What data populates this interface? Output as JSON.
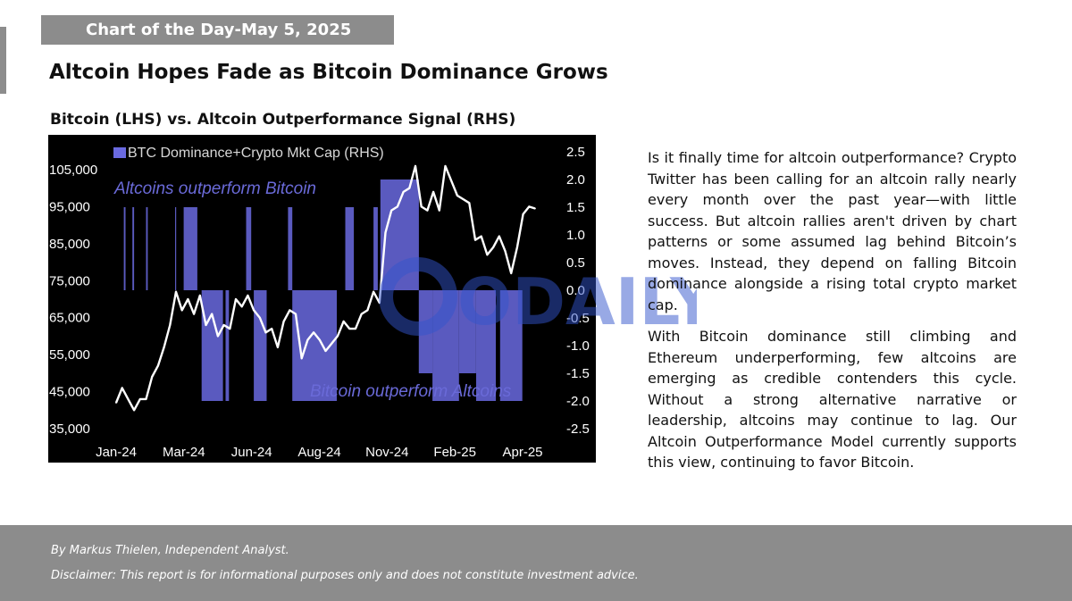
{
  "header": {
    "badge": "Chart of the Day-May 5, 2025",
    "headline": "Altcoin Hopes Fade as Bitcoin Dominance Grows"
  },
  "chart_data": {
    "type": "line",
    "title": "Bitcoin (LHS) vs. Altcoin Outperformance Signal (RHS)",
    "legend": "BTC Dominance+Crypto Mkt Cap (RHS)",
    "legend_position": "top-left",
    "annotations": {
      "top": "Altcoins outperform Bitcoin",
      "bottom": "Bitcoin outperform Altcoins"
    },
    "x_ticks": [
      "Jan-24",
      "Mar-24",
      "Jun-24",
      "Aug-24",
      "Nov-24",
      "Feb-25",
      "Apr-25"
    ],
    "x_range": [
      "2024-01-01",
      "2025-05-05"
    ],
    "y_left": {
      "ticks": [
        "105,000",
        "95,000",
        "85,000",
        "75,000",
        "65,000",
        "55,000",
        "45,000",
        "35,000"
      ],
      "range": [
        35000,
        105000
      ]
    },
    "y_right": {
      "ticks": [
        "2.5",
        "2.0",
        "1.5",
        "1.0",
        "0.5",
        "0.0",
        "-0.5",
        "-1.0",
        "-1.5",
        "-2.0",
        "-2.5"
      ],
      "range": [
        -2.5,
        2.5
      ]
    },
    "grid": false,
    "series": [
      {
        "name": "BTC Dominance+Crypto Mkt Cap (RHS)",
        "type": "signal-bars",
        "color": "#6a6ae0",
        "bars": [
          {
            "start": "2024-01-10",
            "end": "2024-01-12",
            "value": 1.5
          },
          {
            "start": "2024-01-20",
            "end": "2024-01-22",
            "value": 1.5
          },
          {
            "start": "2024-02-05",
            "end": "2024-02-07",
            "value": 1.5
          },
          {
            "start": "2024-03-10",
            "end": "2024-03-11",
            "value": 1.5
          },
          {
            "start": "2024-03-20",
            "end": "2024-04-05",
            "value": 1.5
          },
          {
            "start": "2024-04-10",
            "end": "2024-05-05",
            "value": -2.0
          },
          {
            "start": "2024-05-08",
            "end": "2024-05-12",
            "value": -2.0
          },
          {
            "start": "2024-06-01",
            "end": "2024-06-07",
            "value": 1.5
          },
          {
            "start": "2024-06-10",
            "end": "2024-06-25",
            "value": -2.0
          },
          {
            "start": "2024-07-20",
            "end": "2024-07-25",
            "value": 1.5
          },
          {
            "start": "2024-07-25",
            "end": "2024-09-15",
            "value": -2.0
          },
          {
            "start": "2024-09-25",
            "end": "2024-10-05",
            "value": 1.5
          },
          {
            "start": "2024-10-28",
            "end": "2024-11-02",
            "value": 1.5
          },
          {
            "start": "2024-11-05",
            "end": "2024-12-20",
            "value": 2.0
          },
          {
            "start": "2024-12-20",
            "end": "2025-01-05",
            "value": -1.5
          },
          {
            "start": "2025-01-05",
            "end": "2025-02-05",
            "value": -2.0
          },
          {
            "start": "2025-02-05",
            "end": "2025-02-25",
            "value": -1.5
          },
          {
            "start": "2025-02-25",
            "end": "2025-03-20",
            "value": -2.0
          },
          {
            "start": "2025-03-25",
            "end": "2025-04-20",
            "value": -2.0
          }
        ]
      },
      {
        "name": "Bitcoin (LHS)",
        "type": "line",
        "color": "#ffffff",
        "points": [
          [
            "2024-01-01",
            42000
          ],
          [
            "2024-01-08",
            46000
          ],
          [
            "2024-01-15",
            43000
          ],
          [
            "2024-01-22",
            40000
          ],
          [
            "2024-01-29",
            43000
          ],
          [
            "2024-02-05",
            43000
          ],
          [
            "2024-02-12",
            49000
          ],
          [
            "2024-02-19",
            52000
          ],
          [
            "2024-02-26",
            57000
          ],
          [
            "2024-03-04",
            63000
          ],
          [
            "2024-03-11",
            72000
          ],
          [
            "2024-03-18",
            67000
          ],
          [
            "2024-03-25",
            70000
          ],
          [
            "2024-04-01",
            66000
          ],
          [
            "2024-04-08",
            71000
          ],
          [
            "2024-04-15",
            63000
          ],
          [
            "2024-04-22",
            66000
          ],
          [
            "2024-04-29",
            60000
          ],
          [
            "2024-05-06",
            63000
          ],
          [
            "2024-05-13",
            62000
          ],
          [
            "2024-05-20",
            70000
          ],
          [
            "2024-05-27",
            68000
          ],
          [
            "2024-06-03",
            71000
          ],
          [
            "2024-06-10",
            67000
          ],
          [
            "2024-06-17",
            65000
          ],
          [
            "2024-06-24",
            61000
          ],
          [
            "2024-07-01",
            62000
          ],
          [
            "2024-07-08",
            57000
          ],
          [
            "2024-07-15",
            64000
          ],
          [
            "2024-07-22",
            67000
          ],
          [
            "2024-07-29",
            66000
          ],
          [
            "2024-08-05",
            54000
          ],
          [
            "2024-08-12",
            59000
          ],
          [
            "2024-08-19",
            61000
          ],
          [
            "2024-08-26",
            59000
          ],
          [
            "2024-09-02",
            56000
          ],
          [
            "2024-09-09",
            58000
          ],
          [
            "2024-09-16",
            60000
          ],
          [
            "2024-09-23",
            64000
          ],
          [
            "2024-09-30",
            62000
          ],
          [
            "2024-10-07",
            62000
          ],
          [
            "2024-10-14",
            66000
          ],
          [
            "2024-10-21",
            67000
          ],
          [
            "2024-10-28",
            72000
          ],
          [
            "2024-11-04",
            69000
          ],
          [
            "2024-11-11",
            88000
          ],
          [
            "2024-11-18",
            94000
          ],
          [
            "2024-11-25",
            95000
          ],
          [
            "2024-12-02",
            99000
          ],
          [
            "2024-12-09",
            100000
          ],
          [
            "2024-12-16",
            106000
          ],
          [
            "2024-12-23",
            95000
          ],
          [
            "2024-12-30",
            94000
          ],
          [
            "2025-01-06",
            99000
          ],
          [
            "2025-01-13",
            94000
          ],
          [
            "2025-01-20",
            106000
          ],
          [
            "2025-01-27",
            102000
          ],
          [
            "2025-02-03",
            98000
          ],
          [
            "2025-02-10",
            97000
          ],
          [
            "2025-02-17",
            96000
          ],
          [
            "2025-02-24",
            86000
          ],
          [
            "2025-03-03",
            87000
          ],
          [
            "2025-03-10",
            82000
          ],
          [
            "2025-03-17",
            84000
          ],
          [
            "2025-03-24",
            87000
          ],
          [
            "2025-03-31",
            83000
          ],
          [
            "2025-04-07",
            77000
          ],
          [
            "2025-04-14",
            84000
          ],
          [
            "2025-04-21",
            93000
          ],
          [
            "2025-04-28",
            95000
          ],
          [
            "2025-05-05",
            94500
          ]
        ]
      }
    ]
  },
  "watermark": "ODAILY",
  "body": {
    "paragraph1": "Is it finally time for altcoin outperformance? Crypto Twitter has been calling for an altcoin rally nearly every month over the past year—with little success. But altcoin rallies aren't driven by chart patterns or some assumed lag behind Bitcoin’s moves. Instead, they depend on falling Bitcoin dominance alongside a rising total crypto market cap.",
    "paragraph2": "With Bitcoin dominance still climbing and Ethereum underperforming, few altcoins are emerging as credible contenders this cycle. Without a strong alternative narrative or leadership, altcoins may continue to lag. Our Altcoin Outperformance Model currently supports this view, continuing to favor Bitcoin."
  },
  "footer": {
    "author": "By Markus Thielen, Independent Analyst.",
    "disclaimer": "Disclaimer: This report is for informational purposes only and does not constitute investment advice."
  }
}
